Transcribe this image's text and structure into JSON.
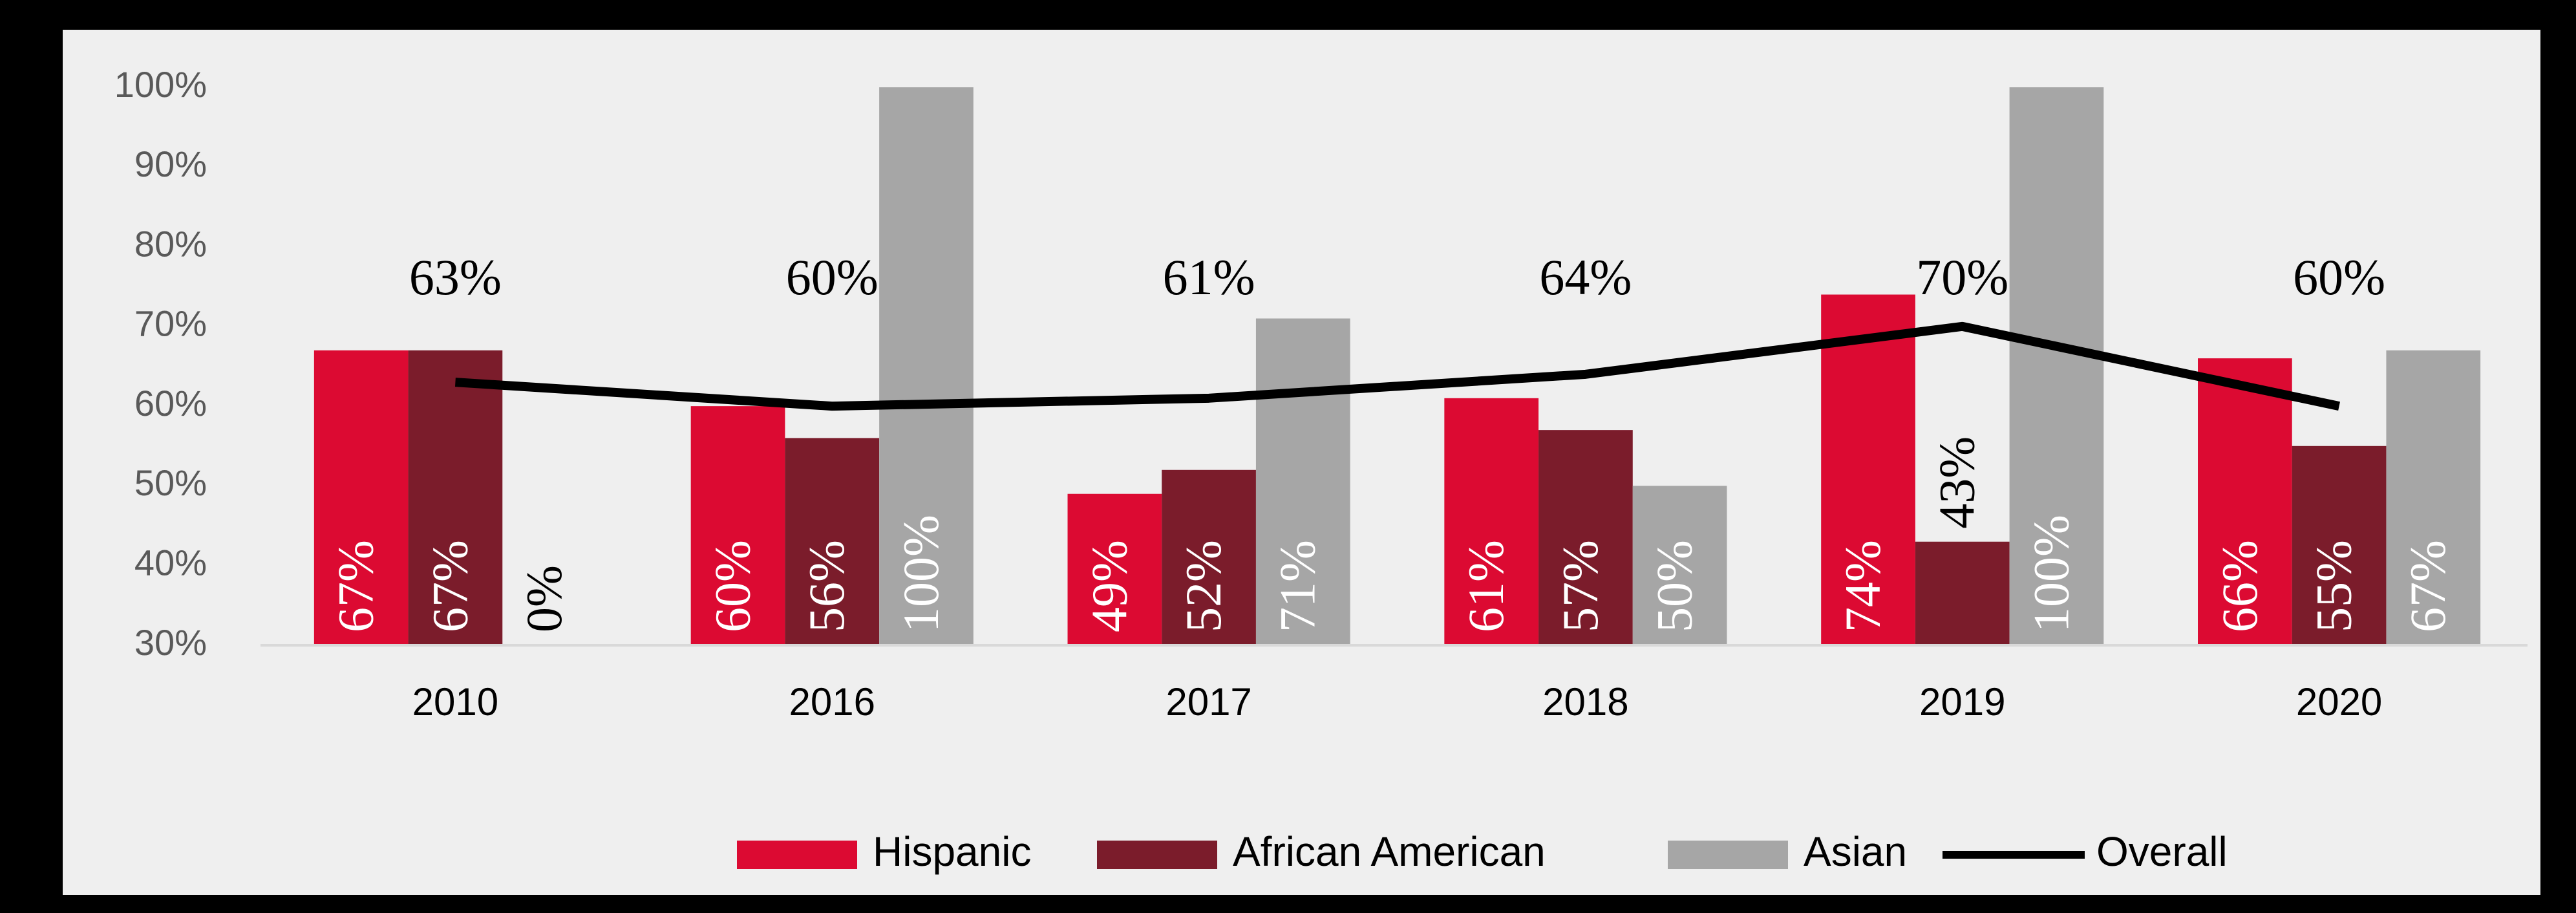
{
  "chart_data": {
    "type": "bar",
    "categories": [
      "2010",
      "2016",
      "2017",
      "2018",
      "2019",
      "2020"
    ],
    "series": [
      {
        "name": "Hispanic",
        "color": "#dc0a32",
        "type": "bar",
        "values": [
          67,
          60,
          49,
          61,
          74,
          66
        ],
        "value_labels": [
          "67%",
          "60%",
          "49%",
          "61%",
          "74%",
          "66%"
        ]
      },
      {
        "name": "African American",
        "color": "#7b1c2b",
        "type": "bar",
        "values": [
          67,
          56,
          52,
          57,
          43,
          55
        ],
        "value_labels": [
          "67%",
          "56%",
          "52%",
          "57%",
          "43%",
          "55%"
        ]
      },
      {
        "name": "Asian",
        "color": "#a6a6a6",
        "type": "bar",
        "values": [
          0,
          100,
          71,
          50,
          100,
          67
        ],
        "value_labels": [
          "0%",
          "100%",
          "71%",
          "50%",
          "100%",
          "67%"
        ]
      },
      {
        "name": "Overall",
        "color": "#000000",
        "type": "line",
        "values": [
          63,
          60,
          61,
          64,
          70,
          60
        ],
        "value_labels": [
          "63%",
          "60%",
          "61%",
          "64%",
          "70%",
          "60%"
        ]
      }
    ],
    "ylim": [
      30,
      100
    ],
    "yticks": [
      {
        "value": 30,
        "label": "30%"
      },
      {
        "value": 40,
        "label": "40%"
      },
      {
        "value": 50,
        "label": "50%"
      },
      {
        "value": 60,
        "label": "60%"
      },
      {
        "value": 70,
        "label": "70%"
      },
      {
        "value": 80,
        "label": "80%"
      },
      {
        "value": 90,
        "label": "90%"
      },
      {
        "value": 100,
        "label": "100%"
      }
    ],
    "grid": false,
    "legend": "bottom"
  }
}
